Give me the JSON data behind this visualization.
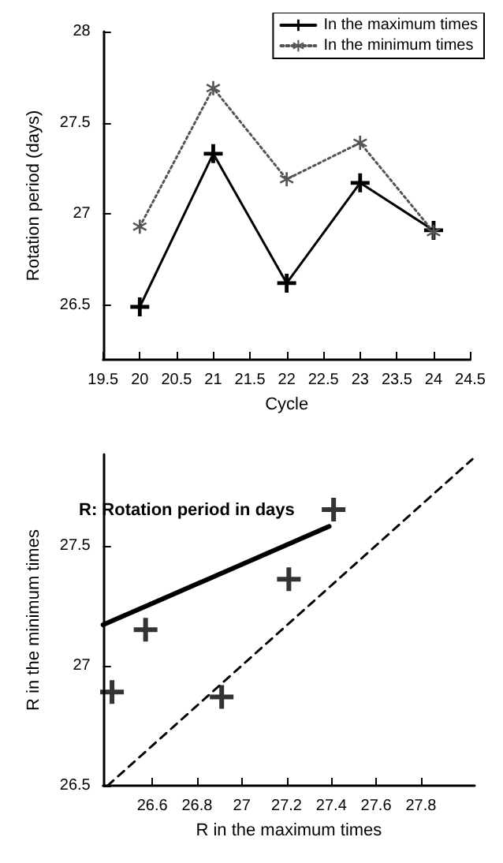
{
  "chart_data": [
    {
      "type": "line",
      "xlabel": "Cycle",
      "ylabel": "Rotation period (days)",
      "x": [
        20,
        21,
        22,
        23,
        24
      ],
      "xlim": [
        19.5,
        24.5
      ],
      "xticks": [
        19.5,
        20,
        20.5,
        21,
        21.5,
        22,
        22.5,
        23,
        23.5,
        24,
        24.5
      ],
      "ylim": [
        26.2,
        28
      ],
      "yticks": [
        26.5,
        27,
        27.5,
        28
      ],
      "grid": false,
      "legend": "top right",
      "series": [
        {
          "name": "In the maximum times",
          "color": "#000000",
          "values": [
            26.49,
            27.33,
            26.62,
            27.17,
            26.91
          ],
          "line_style": "solid",
          "marker": "cross"
        },
        {
          "name": "In the minimum times",
          "color": "#555555",
          "values": [
            26.93,
            27.69,
            27.19,
            27.39,
            26.9
          ],
          "line_style": "dotted",
          "marker": "star"
        }
      ]
    },
    {
      "type": "scatter",
      "xlabel": "R in the maximum times",
      "ylabel": "R in the minimum times",
      "xlim": [
        26.38,
        28.04
      ],
      "xticks": [
        26.6,
        26.8,
        27,
        27.2,
        27.4,
        27.6,
        27.8
      ],
      "ylim": [
        26.5,
        27.88
      ],
      "yticks": [
        26.5,
        27,
        27.5
      ],
      "grid": false,
      "legend": false,
      "annotations": [
        "R: Rotation period in days"
      ],
      "series": [
        {
          "color": "#000000",
          "x": [
            26.42,
            26.57,
            26.91,
            27.21,
            27.41
          ],
          "values": [
            26.89,
            27.15,
            26.87,
            27.36,
            27.65
          ],
          "marker": "cross"
        },
        {
          "type": "line",
          "color": "#000000",
          "x": [
            26.38,
            27.39
          ],
          "values": [
            27.17,
            27.58
          ],
          "line_style": "solid",
          "marker": "none"
        },
        {
          "type": "line",
          "color": "#000000",
          "x": [
            26.4,
            28.03
          ],
          "values": [
            26.5,
            27.86
          ],
          "line_style": "dashed",
          "marker": "none"
        }
      ]
    }
  ]
}
